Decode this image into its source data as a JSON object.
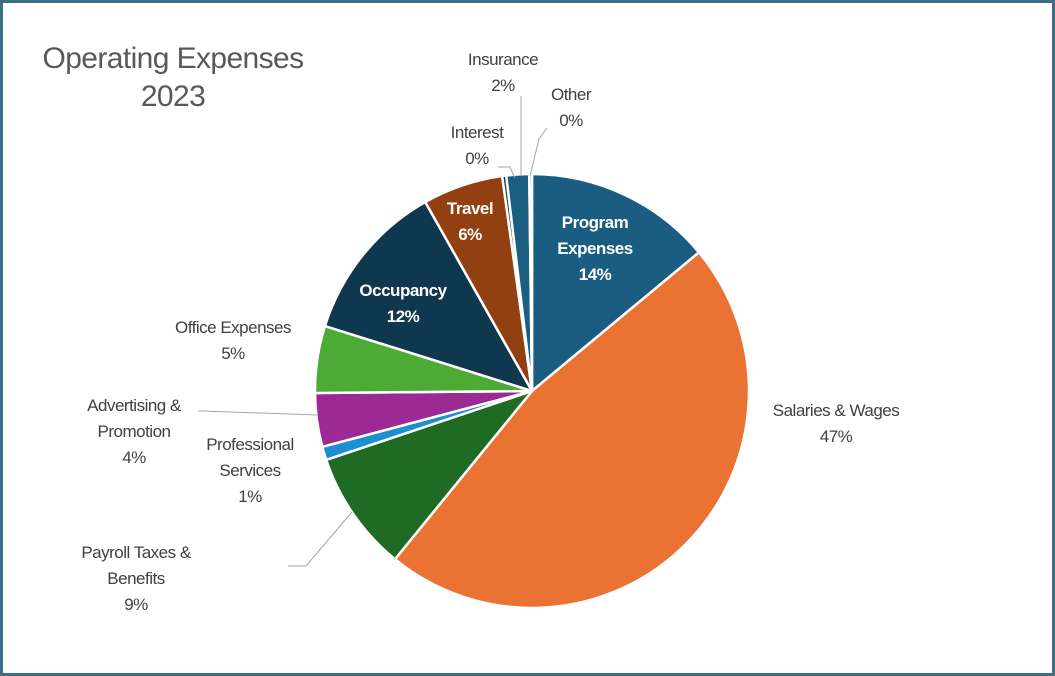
{
  "chart_data": {
    "type": "pie",
    "title": "Operating Expenses",
    "subtitle": "2023",
    "slices": [
      {
        "label": "Program Expenses",
        "value": 14,
        "value_label": "14%",
        "color": "#1a5d80"
      },
      {
        "label": "Salaries & Wages",
        "value": 47,
        "value_label": "47%",
        "color": "#ea7233"
      },
      {
        "label": "Payroll Taxes & Benefits",
        "value": 9,
        "value_label": "9%",
        "color": "#1f6b26"
      },
      {
        "label": "Professional Services",
        "value": 1,
        "value_label": "1%",
        "color": "#1c8fd0"
      },
      {
        "label": "Advertising & Promotion",
        "value": 4,
        "value_label": "4%",
        "color": "#9b2a94"
      },
      {
        "label": "Office Expenses",
        "value": 5,
        "value_label": "5%",
        "color": "#4daa34"
      },
      {
        "label": "Occupancy",
        "value": 12,
        "value_label": "12%",
        "color": "#0f374e"
      },
      {
        "label": "Travel",
        "value": 6,
        "value_label": "6%",
        "color": "#923f12"
      },
      {
        "label": "Interest",
        "value": 0.3,
        "value_label": "0%",
        "color": "#0e3a52"
      },
      {
        "label": "Insurance",
        "value": 1.7,
        "value_label": "2%",
        "color": "#1b5e82"
      },
      {
        "label": "Other",
        "value": 0.2,
        "value_label": "0%",
        "color": "#2a8bbf"
      }
    ]
  }
}
